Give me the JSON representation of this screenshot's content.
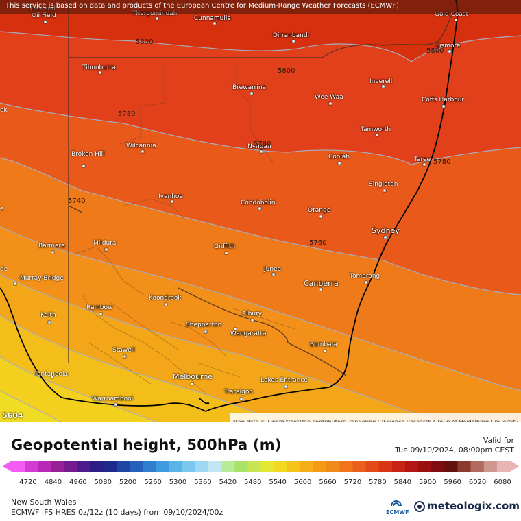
{
  "attribution_top": "This service is based on data and products of the European Centre for Medium-Range Weather Forecasts (ECMWF)",
  "attribution_map": "Map data © OpenStreetMap contributors, rendering GIScience Research Group @ Heidelberg University",
  "map": {
    "region": "New South Wales",
    "towns": [
      "Gas and Oil Field",
      "Thargomindah",
      "Cunnamulla",
      "Gold Coast",
      "Dirranbandi",
      "Lismore",
      "Tibooburra",
      "Brewarrina",
      "Inverell",
      "Wee Waa",
      "Coffs Harbour",
      "Tamworth",
      "Wilcannia",
      "Nyngan",
      "Broken Hill",
      "Coolah",
      "Taree",
      "Singleton",
      "Ivanhoe",
      "Condobolin",
      "Orange",
      "Sydney",
      "Barmera",
      "Mildura",
      "Griffith",
      "Murray Bridge",
      "Junee",
      "Canberra",
      "Tomerong",
      "Koondrook",
      "Keith",
      "Rainbow",
      "Albury",
      "Shepparton",
      "Wangaratta",
      "Stawell",
      "Bombala",
      "Tantanoola",
      "Melbourne",
      "Lakes Entrance",
      "Traralgon",
      "Warrnambool"
    ],
    "contour_labels": [
      "5800",
      "5800",
      "5800",
      "5780",
      "5780",
      "5780",
      "5740",
      "5760",
      "5604"
    ],
    "partial_labels": [
      "Gas and",
      "Oil Field"
    ],
    "edge_labels": [
      "ek",
      "de",
      "e"
    ]
  },
  "legend": {
    "title": "Geopotential height, 500hPa (m)",
    "valid_label": "Valid for",
    "valid_time": "Tue 09/10/2024, 08:00pm CEST",
    "region": "New South Wales",
    "model": "ECMWF IFS HRES 0z/12z (10 days) from  09/10/2024/00z",
    "ecmwf_logo_text": "ECMWF",
    "brand": "meteologix.com",
    "scale_labels": [
      "4720",
      "4840",
      "4960",
      "5080",
      "5200",
      "5260",
      "5300",
      "5360",
      "5420",
      "5480",
      "5540",
      "5600",
      "5660",
      "5720",
      "5780",
      "5840",
      "5900",
      "5960",
      "6020",
      "6080"
    ],
    "scale_colors": [
      "#f25cf2",
      "#d63ad4",
      "#b82ab6",
      "#962098",
      "#741a8c",
      "#4c1a8a",
      "#2c1d86",
      "#1c2a8e",
      "#1e44a4",
      "#2460bc",
      "#2f7ed0",
      "#3f9be0",
      "#5ab4ea",
      "#7ac8f0",
      "#9ed8f4",
      "#c3e6f5",
      "#b7ec9a",
      "#a9e36a",
      "#c8e654",
      "#e4e832",
      "#f2d81e",
      "#f4c41a",
      "#f5ae18",
      "#f39a17",
      "#f08a1a",
      "#ef741c",
      "#ea5f1c",
      "#e4491a",
      "#d93617",
      "#c72314",
      "#b51512",
      "#9c0f10",
      "#7f0d0f",
      "#64100f",
      "#8c3a2c",
      "#b06a5e",
      "#cf9690",
      "#e9b4b4"
    ]
  },
  "colors": {
    "coast": "#000000",
    "border": "#4a3020",
    "contour": "#a0a8b8"
  }
}
